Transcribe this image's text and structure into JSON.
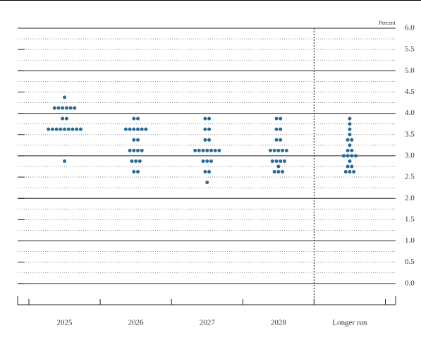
{
  "chart_data": {
    "type": "dot-plot",
    "y_axis_label": "Percent",
    "categories": [
      "2025",
      "2026",
      "2027",
      "2028",
      "Longer run"
    ],
    "color": "#2b6b97",
    "ylim": [
      -0.5,
      6.0
    ],
    "yticks": [
      {
        "value": 0,
        "label": "0.0"
      },
      {
        "value": 0.5,
        "label": "0.5"
      },
      {
        "value": 1,
        "label": "1.0"
      },
      {
        "value": 1.5,
        "label": "1.5"
      },
      {
        "value": 2,
        "label": "2.0"
      },
      {
        "value": 2.5,
        "label": "2.5"
      },
      {
        "value": 3,
        "label": "3.0"
      },
      {
        "value": 3.5,
        "label": "3.5"
      },
      {
        "value": 4,
        "label": "4.0"
      },
      {
        "value": 4.5,
        "label": "4.5"
      },
      {
        "value": 5,
        "label": "5.0"
      },
      {
        "value": 5.5,
        "label": "5.5"
      },
      {
        "value": 6,
        "label": "6.0"
      }
    ],
    "dots": [
      [
        {
          "value": 4.375,
          "count": 1
        },
        {
          "value": 4.125,
          "count": 6
        },
        {
          "value": 3.875,
          "count": 2
        },
        {
          "value": 3.625,
          "count": 9
        },
        {
          "value": 2.875,
          "count": 1
        }
      ],
      [
        {
          "value": 3.875,
          "count": 2
        },
        {
          "value": 3.625,
          "count": 6
        },
        {
          "value": 3.375,
          "count": 2
        },
        {
          "value": 3.125,
          "count": 4
        },
        {
          "value": 2.875,
          "count": 3
        },
        {
          "value": 2.625,
          "count": 2
        }
      ],
      [
        {
          "value": 3.875,
          "count": 2
        },
        {
          "value": 3.625,
          "count": 2
        },
        {
          "value": 3.375,
          "count": 2
        },
        {
          "value": 3.125,
          "count": 7
        },
        {
          "value": 2.875,
          "count": 3
        },
        {
          "value": 2.625,
          "count": 2
        },
        {
          "value": 2.375,
          "count": 1
        }
      ],
      [
        {
          "value": 3.875,
          "count": 2
        },
        {
          "value": 3.625,
          "count": 2
        },
        {
          "value": 3.375,
          "count": 2
        },
        {
          "value": 3.125,
          "count": 5
        },
        {
          "value": 2.875,
          "count": 4
        },
        {
          "value": 2.75,
          "count": 1
        },
        {
          "value": 2.625,
          "count": 3
        }
      ],
      [
        {
          "value": 3.875,
          "count": 1
        },
        {
          "value": 3.75,
          "count": 1
        },
        {
          "value": 3.625,
          "count": 1
        },
        {
          "value": 3.5,
          "count": 1
        },
        {
          "value": 3.375,
          "count": 2
        },
        {
          "value": 3.25,
          "count": 1
        },
        {
          "value": 3.125,
          "count": 2
        },
        {
          "value": 3.0,
          "count": 4
        },
        {
          "value": 2.875,
          "count": 1
        },
        {
          "value": 2.75,
          "count": 2
        },
        {
          "value": 2.625,
          "count": 3
        }
      ]
    ]
  }
}
